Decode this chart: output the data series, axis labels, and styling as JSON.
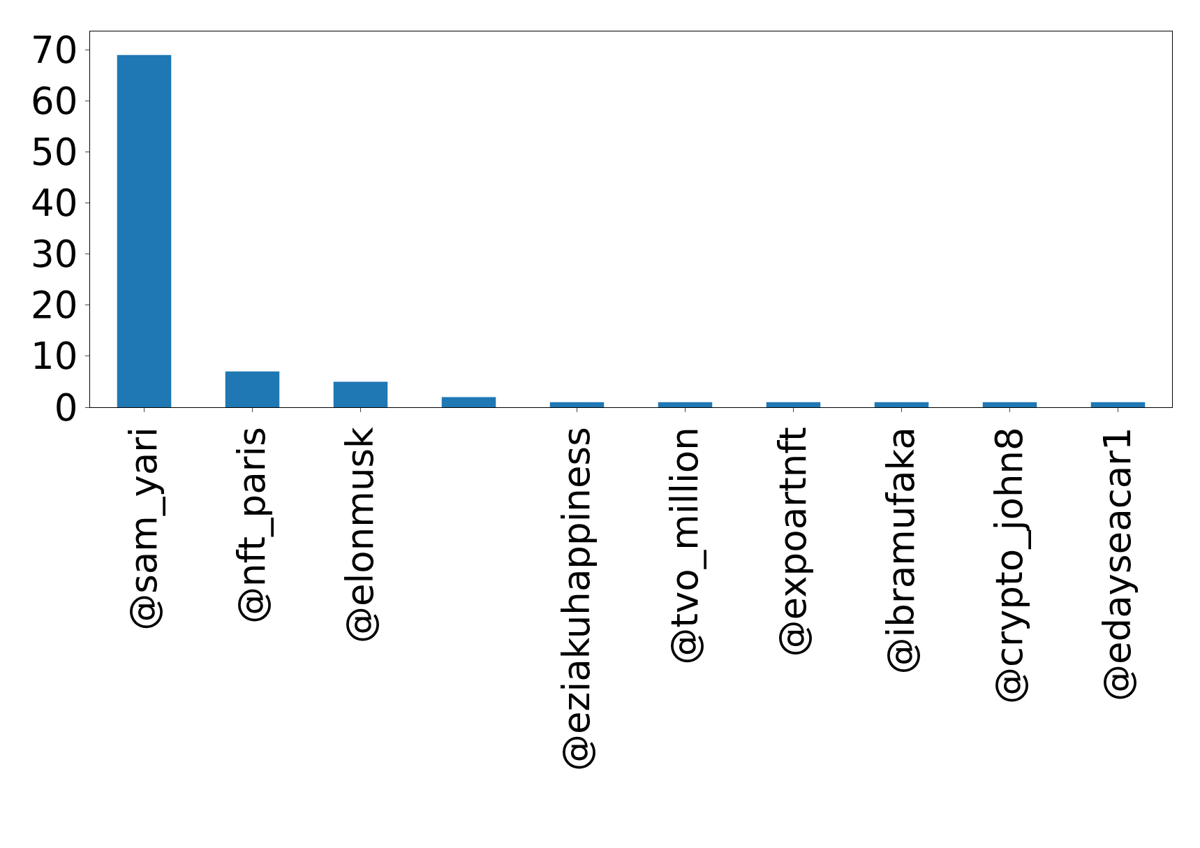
{
  "chart_data": {
    "type": "bar",
    "categories": [
      "@sam_yari",
      "@nft_paris",
      "@elonmusk",
      null,
      "@eziakuhappiness",
      "@tvo_million",
      "@expoartnft",
      "@ibramufaka",
      "@crypto_john8",
      "@edayseacar1"
    ],
    "values": [
      69,
      7,
      5,
      2,
      1,
      1,
      1,
      1,
      1,
      1
    ],
    "color": "#1f77b4",
    "ylim": [
      0,
      73.6
    ],
    "yticks": [
      0,
      10,
      20,
      30,
      40,
      50,
      60,
      70
    ]
  }
}
